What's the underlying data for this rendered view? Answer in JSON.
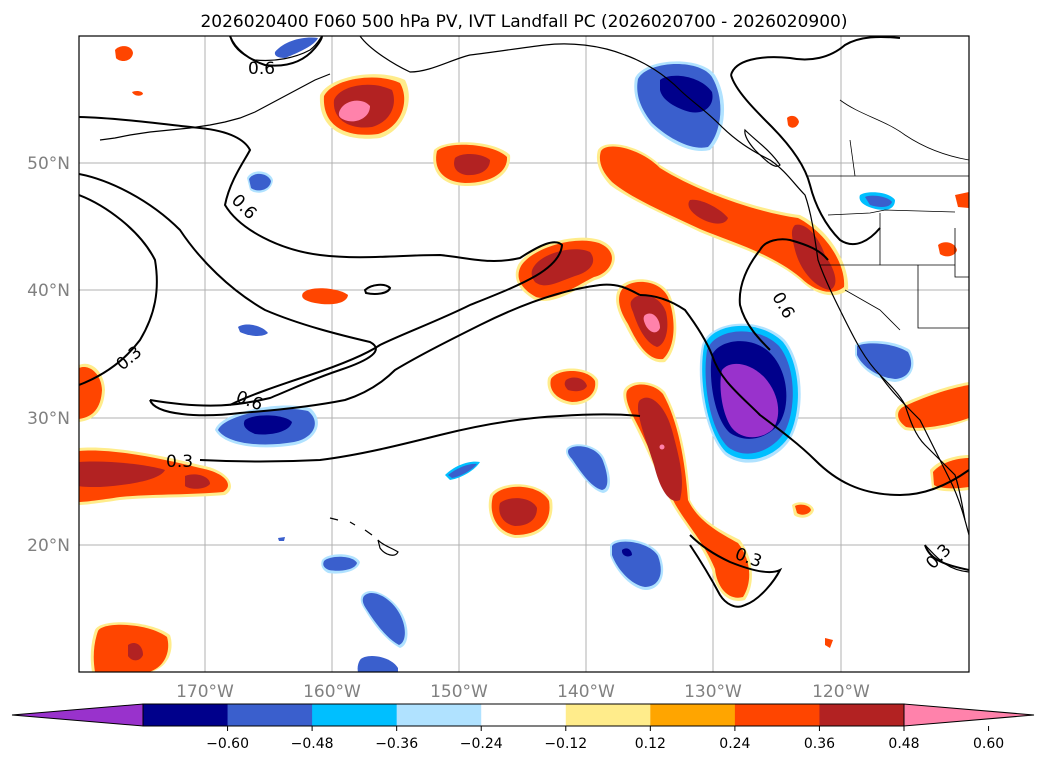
{
  "title": "2026020400 F060 500 hPa PV, IVT Landfall PC (2026020700 - 2026020900)",
  "map": {
    "lat_labels": [
      "50°N",
      "40°N",
      "30°N",
      "20°N"
    ],
    "lon_labels": [
      "170°W",
      "160°W",
      "150°W",
      "140°W",
      "130°W",
      "120°W"
    ],
    "contour_labels": [
      "0.6",
      "0.6",
      "0.3",
      "0.6",
      "0.3",
      "0.6",
      "0.3",
      "0.3"
    ],
    "label_color": "#808080"
  },
  "colorbar": {
    "ticks": [
      "−0.60",
      "−0.48",
      "−0.36",
      "−0.24",
      "−0.12",
      "0.12",
      "0.24",
      "0.36",
      "0.48",
      "0.60"
    ],
    "colors": [
      "#9932cc",
      "#00008b",
      "#3a5fcd",
      "#00bfff",
      "#b0e2ff",
      "#ffffff",
      "#ffec8b",
      "#ffa500",
      "#ff4500",
      "#b22222",
      "#ff82ab"
    ]
  }
}
